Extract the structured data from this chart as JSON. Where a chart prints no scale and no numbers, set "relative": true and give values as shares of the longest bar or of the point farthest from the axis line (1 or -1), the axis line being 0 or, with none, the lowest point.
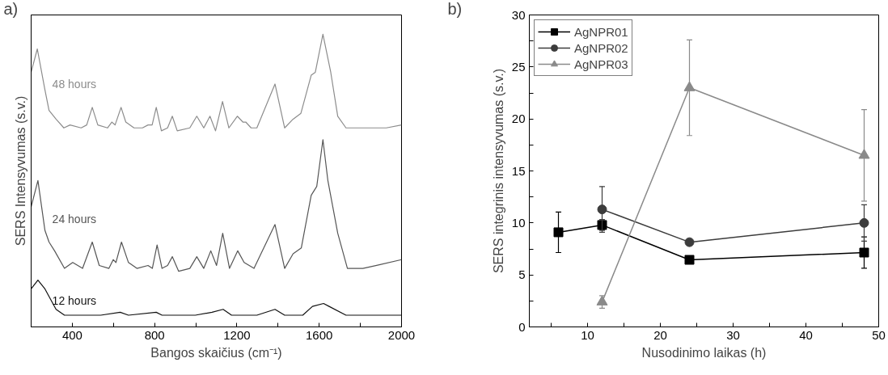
{
  "chart_data": [
    {
      "type": "line",
      "title": "a)",
      "xlabel": "Bangos skaičius (cm⁻¹)",
      "ylabel": "SERS Intensyvumas (s.v.)",
      "relative": true,
      "xlim": [
        200,
        2000
      ],
      "xticks": [
        400,
        {
          "value": 600,
          "label": null
        },
        800,
        {
          "value": 1000,
          "label": null
        },
        1200,
        {
          "value": 1400,
          "label": null
        },
        1600,
        {
          "value": 1800,
          "label": null
        },
        2000
      ],
      "grid": false,
      "legend": false,
      "marker": "none",
      "line_style": "solid",
      "series": [
        {
          "name": "48 hours",
          "color": "#8c8c8c",
          "x": [
            200,
            230,
            267,
            287,
            321,
            359,
            389,
            443,
            470,
            497,
            524,
            571,
            592,
            608,
            637,
            660,
            700,
            741,
            768,
            788,
            808,
            833,
            863,
            886,
            910,
            971,
            1005,
            1039,
            1069,
            1096,
            1130,
            1161,
            1202,
            1229,
            1243,
            1269,
            1297,
            1385,
            1432,
            1473,
            1511,
            1561,
            1581,
            1618,
            1656,
            1690,
            1730,
            1784,
            1852,
            1879,
            1926,
            2000
          ],
          "values": [
            0.87,
            0.95,
            0.81,
            0.74,
            0.71,
            0.68,
            0.69,
            0.68,
            0.69,
            0.75,
            0.69,
            0.68,
            0.7,
            0.69,
            0.75,
            0.7,
            0.68,
            0.68,
            0.69,
            0.69,
            0.75,
            0.67,
            0.68,
            0.72,
            0.67,
            0.68,
            0.72,
            0.68,
            0.72,
            0.67,
            0.77,
            0.68,
            0.72,
            0.7,
            0.7,
            0.68,
            0.68,
            0.83,
            0.68,
            0.71,
            0.73,
            0.86,
            0.87,
            1.0,
            0.87,
            0.72,
            0.68,
            0.68,
            0.68,
            0.68,
            0.68,
            0.69
          ]
        },
        {
          "name": "24 hours",
          "color": "#555555",
          "x": [
            200,
            233,
            267,
            287,
            314,
            362,
            402,
            450,
            497,
            531,
            578,
            599,
            612,
            639,
            673,
            714,
            768,
            789,
            812,
            836,
            863,
            886,
            917,
            971,
            1005,
            1039,
            1073,
            1101,
            1131,
            1164,
            1204,
            1235,
            1283,
            1385,
            1432,
            1473,
            1513,
            1561,
            1588,
            1618,
            1642,
            1690,
            1737,
            1812,
            1879,
            2000
          ],
          "values": [
            0.41,
            0.5,
            0.33,
            0.29,
            0.26,
            0.2,
            0.22,
            0.2,
            0.29,
            0.21,
            0.2,
            0.23,
            0.22,
            0.29,
            0.22,
            0.2,
            0.21,
            0.2,
            0.28,
            0.2,
            0.21,
            0.24,
            0.19,
            0.2,
            0.24,
            0.2,
            0.26,
            0.21,
            0.32,
            0.2,
            0.26,
            0.22,
            0.2,
            0.35,
            0.2,
            0.25,
            0.27,
            0.45,
            0.48,
            0.64,
            0.5,
            0.32,
            0.2,
            0.2,
            0.21,
            0.23
          ]
        },
        {
          "name": "12 hours",
          "color": "#111111",
          "x": [
            200,
            233,
            267,
            321,
            362,
            456,
            497,
            538,
            633,
            673,
            808,
            836,
            930,
            998,
            1079,
            1133,
            1174,
            1297,
            1385,
            1432,
            1520,
            1567,
            1621,
            1648,
            1730,
            1812,
            2000
          ],
          "values": [
            0.13,
            0.16,
            0.13,
            0.06,
            0.04,
            0.04,
            0.04,
            0.04,
            0.05,
            0.04,
            0.05,
            0.04,
            0.04,
            0.04,
            0.05,
            0.06,
            0.04,
            0.04,
            0.06,
            0.04,
            0.04,
            0.07,
            0.08,
            0.07,
            0.04,
            0.04,
            0.04
          ]
        }
      ]
    },
    {
      "type": "line",
      "title": "b)",
      "xlabel": "Nusodinimo laikas (h)",
      "ylabel": "SERS integrinis intensyvumas (s.v.)",
      "xlim": [
        2,
        50
      ],
      "xticks": [
        {
          "value": 5,
          "label": null
        },
        10,
        {
          "value": 15,
          "label": null
        },
        20,
        {
          "value": 25,
          "label": null
        },
        30,
        {
          "value": 35,
          "label": null
        },
        40,
        {
          "value": 45,
          "label": null
        },
        50
      ],
      "ylim": [
        0,
        30
      ],
      "yticks": [
        0,
        {
          "value": 2.5,
          "label": null
        },
        5,
        {
          "value": 7.5,
          "label": null
        },
        10,
        {
          "value": 12.5,
          "label": null
        },
        15,
        {
          "value": 17.5,
          "label": null
        },
        20,
        {
          "value": 22.5,
          "label": null
        },
        25,
        {
          "value": 27.5,
          "label": null
        },
        30
      ],
      "grid": false,
      "legend": "top left",
      "line_style": "solid",
      "series": [
        {
          "name": "AgNPR01",
          "color": "#000000",
          "marker": "square",
          "x": [
            6,
            12,
            24,
            48
          ],
          "values": [
            9.1,
            9.8,
            6.45,
            7.15
          ],
          "errors": [
            1.95,
            0.5,
            0.2,
            1.5
          ]
        },
        {
          "name": "AgNPR02",
          "color": "#3c3c3c",
          "marker": "circle",
          "x": [
            12,
            24,
            48
          ],
          "values": [
            11.3,
            8.15,
            10.0
          ],
          "errors": [
            2.2,
            0.2,
            1.75
          ]
        },
        {
          "name": "AgNPR03",
          "color": "#8a8a8a",
          "marker": "triangle",
          "x": [
            12,
            24,
            48
          ],
          "values": [
            2.4,
            23.0,
            16.5
          ],
          "errors": [
            0.6,
            4.6,
            4.4
          ]
        }
      ]
    }
  ]
}
